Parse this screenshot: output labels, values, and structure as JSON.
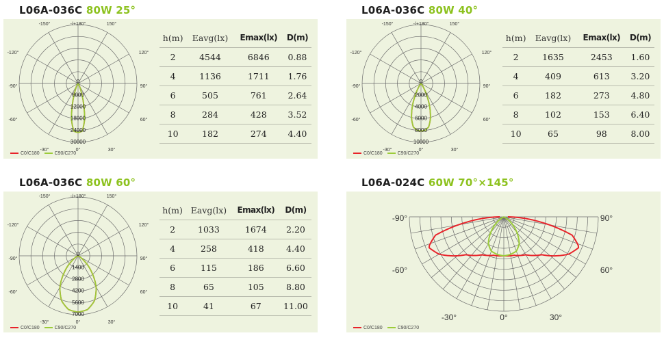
{
  "colors": {
    "c0": "#e8232a",
    "c90": "#9ccc3a",
    "accent": "#8dc21f"
  },
  "chart_data": [
    {
      "type": "polar",
      "title": "L06A-036C",
      "title_accent": "80W 25°",
      "angle_labels": [
        "-150°",
        "-/+180°",
        "150°",
        "-120°",
        "120°",
        "-90°",
        "90°",
        "-60°",
        "60°",
        "-30°",
        "0°",
        "30°"
      ],
      "radial_max": 30000,
      "radial_ticks": [
        "0",
        "6000",
        "12000",
        "18000",
        "24000",
        "30000"
      ],
      "series": [
        {
          "name": "C0/C180",
          "points": [
            [
              0,
              25000
            ],
            [
              5,
              24500
            ],
            [
              10,
              19000
            ],
            [
              15,
              11000
            ],
            [
              20,
              5000
            ],
            [
              25,
              2400
            ],
            [
              30,
              900
            ],
            [
              35,
              0
            ]
          ]
        },
        {
          "name": "C90/C270",
          "points": [
            [
              0,
              25000
            ],
            [
              5,
              24500
            ],
            [
              10,
              19000
            ],
            [
              15,
              11000
            ],
            [
              20,
              5000
            ],
            [
              25,
              2400
            ],
            [
              30,
              900
            ],
            [
              35,
              0
            ]
          ]
        }
      ],
      "table": {
        "headers": [
          "h(m)",
          "Eavg(lx)",
          "Emax(lx)",
          "D(m)"
        ],
        "rows": [
          [
            "2",
            "4544",
            "6846",
            "0.88"
          ],
          [
            "4",
            "1136",
            "1711",
            "1.76"
          ],
          [
            "6",
            "505",
            "761",
            "2.64"
          ],
          [
            "8",
            "284",
            "428",
            "3.52"
          ],
          [
            "10",
            "182",
            "274",
            "4.40"
          ]
        ]
      }
    },
    {
      "type": "polar",
      "title": "L06A-036C",
      "title_accent": "80W 40°",
      "angle_labels": [
        "-150°",
        "-/+180°",
        "150°",
        "-120°",
        "120°",
        "-90°",
        "90°",
        "-60°",
        "60°",
        "-30°",
        "0°",
        "30°"
      ],
      "radial_max": 10000,
      "radial_ticks": [
        "0",
        "2000",
        "4000",
        "6000",
        "8000",
        "10000"
      ],
      "series": [
        {
          "name": "C0/C180",
          "points": [
            [
              0,
              8100
            ],
            [
              5,
              8000
            ],
            [
              10,
              7500
            ],
            [
              15,
              6200
            ],
            [
              20,
              4400
            ],
            [
              25,
              2500
            ],
            [
              30,
              1100
            ],
            [
              35,
              400
            ],
            [
              40,
              0
            ]
          ]
        },
        {
          "name": "C90/C270",
          "points": [
            [
              0,
              8100
            ],
            [
              5,
              8000
            ],
            [
              10,
              7500
            ],
            [
              15,
              6200
            ],
            [
              20,
              4400
            ],
            [
              25,
              2500
            ],
            [
              30,
              1100
            ],
            [
              35,
              400
            ],
            [
              40,
              0
            ]
          ]
        }
      ],
      "table": {
        "headers": [
          "h(m)",
          "Eavg(lx)",
          "Emax(lx)",
          "D(m)"
        ],
        "rows": [
          [
            "2",
            "1635",
            "2453",
            "1.60"
          ],
          [
            "4",
            "409",
            "613",
            "3.20"
          ],
          [
            "6",
            "182",
            "273",
            "4.80"
          ],
          [
            "8",
            "102",
            "153",
            "6.40"
          ],
          [
            "10",
            "65",
            "98",
            "8.00"
          ]
        ]
      }
    },
    {
      "type": "polar",
      "title": "L06A-036C",
      "title_accent": "80W 60°",
      "angle_labels": [
        "-150°",
        "-/+180°",
        "150°",
        "-120°",
        "120°",
        "-90°",
        "90°",
        "-60°",
        "60°",
        "-30°",
        "0°",
        "30°"
      ],
      "radial_max": 7000,
      "radial_ticks": [
        "0",
        "1400",
        "2800",
        "4200",
        "5600",
        "7000"
      ],
      "series": [
        {
          "name": "C0/C180",
          "points": [
            [
              0,
              6700
            ],
            [
              10,
              6500
            ],
            [
              20,
              5700
            ],
            [
              30,
              4300
            ],
            [
              40,
              2500
            ],
            [
              50,
              1000
            ],
            [
              55,
              500
            ],
            [
              65,
              0
            ]
          ]
        },
        {
          "name": "C90/C270",
          "points": [
            [
              0,
              6700
            ],
            [
              10,
              6500
            ],
            [
              20,
              5700
            ],
            [
              30,
              4300
            ],
            [
              40,
              2500
            ],
            [
              50,
              1000
            ],
            [
              55,
              500
            ],
            [
              65,
              0
            ]
          ]
        }
      ],
      "table": {
        "headers": [
          "h(m)",
          "Eavg(lx)",
          "Emax(lx)",
          "D(m)"
        ],
        "rows": [
          [
            "2",
            "1033",
            "1674",
            "2.20"
          ],
          [
            "4",
            "258",
            "418",
            "4.40"
          ],
          [
            "6",
            "115",
            "186",
            "6.60"
          ],
          [
            "8",
            "65",
            "105",
            "8.80"
          ],
          [
            "10",
            "41",
            "67",
            "11.00"
          ]
        ]
      }
    },
    {
      "type": "polar",
      "title": "L06A-024C",
      "title_accent": "60W 70°×145°",
      "angle_labels": [
        "-90°",
        "90°",
        "-60°",
        "60°",
        "-30°",
        "0°",
        "30°"
      ],
      "radial_max": 1,
      "radial_ticks": [],
      "series": [
        {
          "name": "C0/C180",
          "points": [
            [
              0,
              0.48
            ],
            [
              15,
              0.49
            ],
            [
              30,
              0.54
            ],
            [
              45,
              0.66
            ],
            [
              60,
              0.92
            ],
            [
              68,
              1.0
            ],
            [
              75,
              0.87
            ],
            [
              82,
              0.45
            ],
            [
              90,
              0.05
            ]
          ]
        },
        {
          "name": "C90/C270",
          "points": [
            [
              0,
              0.48
            ],
            [
              10,
              0.47
            ],
            [
              20,
              0.45
            ],
            [
              30,
              0.38
            ],
            [
              40,
              0.25
            ],
            [
              50,
              0.12
            ],
            [
              60,
              0.03
            ],
            [
              65,
              0
            ]
          ]
        }
      ]
    }
  ]
}
